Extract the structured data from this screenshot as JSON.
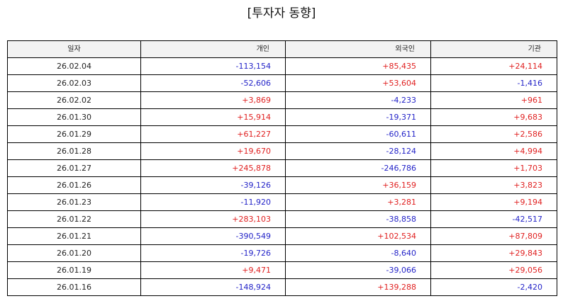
{
  "title": "[투자자 동향]",
  "table": {
    "headers": [
      "일자",
      "개인",
      "외국인",
      "기관"
    ],
    "rows": [
      [
        "26.02.04",
        "-113,154",
        "+85,435",
        "+24,114"
      ],
      [
        "26.02.03",
        "-52,606",
        "+53,604",
        "-1,416"
      ],
      [
        "26.02.02",
        "+3,869",
        "-4,233",
        "+961"
      ],
      [
        "26.01.30",
        "+15,914",
        "-19,371",
        "+9,683"
      ],
      [
        "26.01.29",
        "+61,227",
        "-60,611",
        "+2,586"
      ],
      [
        "26.01.28",
        "+19,670",
        "-28,124",
        "+4,994"
      ],
      [
        "26.01.27",
        "+245,878",
        "-246,786",
        "+1,703"
      ],
      [
        "26.01.26",
        "-39,126",
        "+36,159",
        "+3,823"
      ],
      [
        "26.01.23",
        "-11,920",
        "+3,281",
        "+9,194"
      ],
      [
        "26.01.22",
        "+283,103",
        "-38,858",
        "-42,517"
      ],
      [
        "26.01.21",
        "-390,549",
        "+102,534",
        "+87,809"
      ],
      [
        "26.01.20",
        "-19,726",
        "-8,640",
        "+29,843"
      ],
      [
        "26.01.19",
        "+9,471",
        "-39,066",
        "+29,056"
      ],
      [
        "26.01.16",
        "-148,924",
        "+139,288",
        "-2,420"
      ]
    ]
  },
  "colors": {
    "positive": "#e02020",
    "negative": "#2323c8",
    "header_bg": "#f2f2f2",
    "border": "#000000"
  }
}
